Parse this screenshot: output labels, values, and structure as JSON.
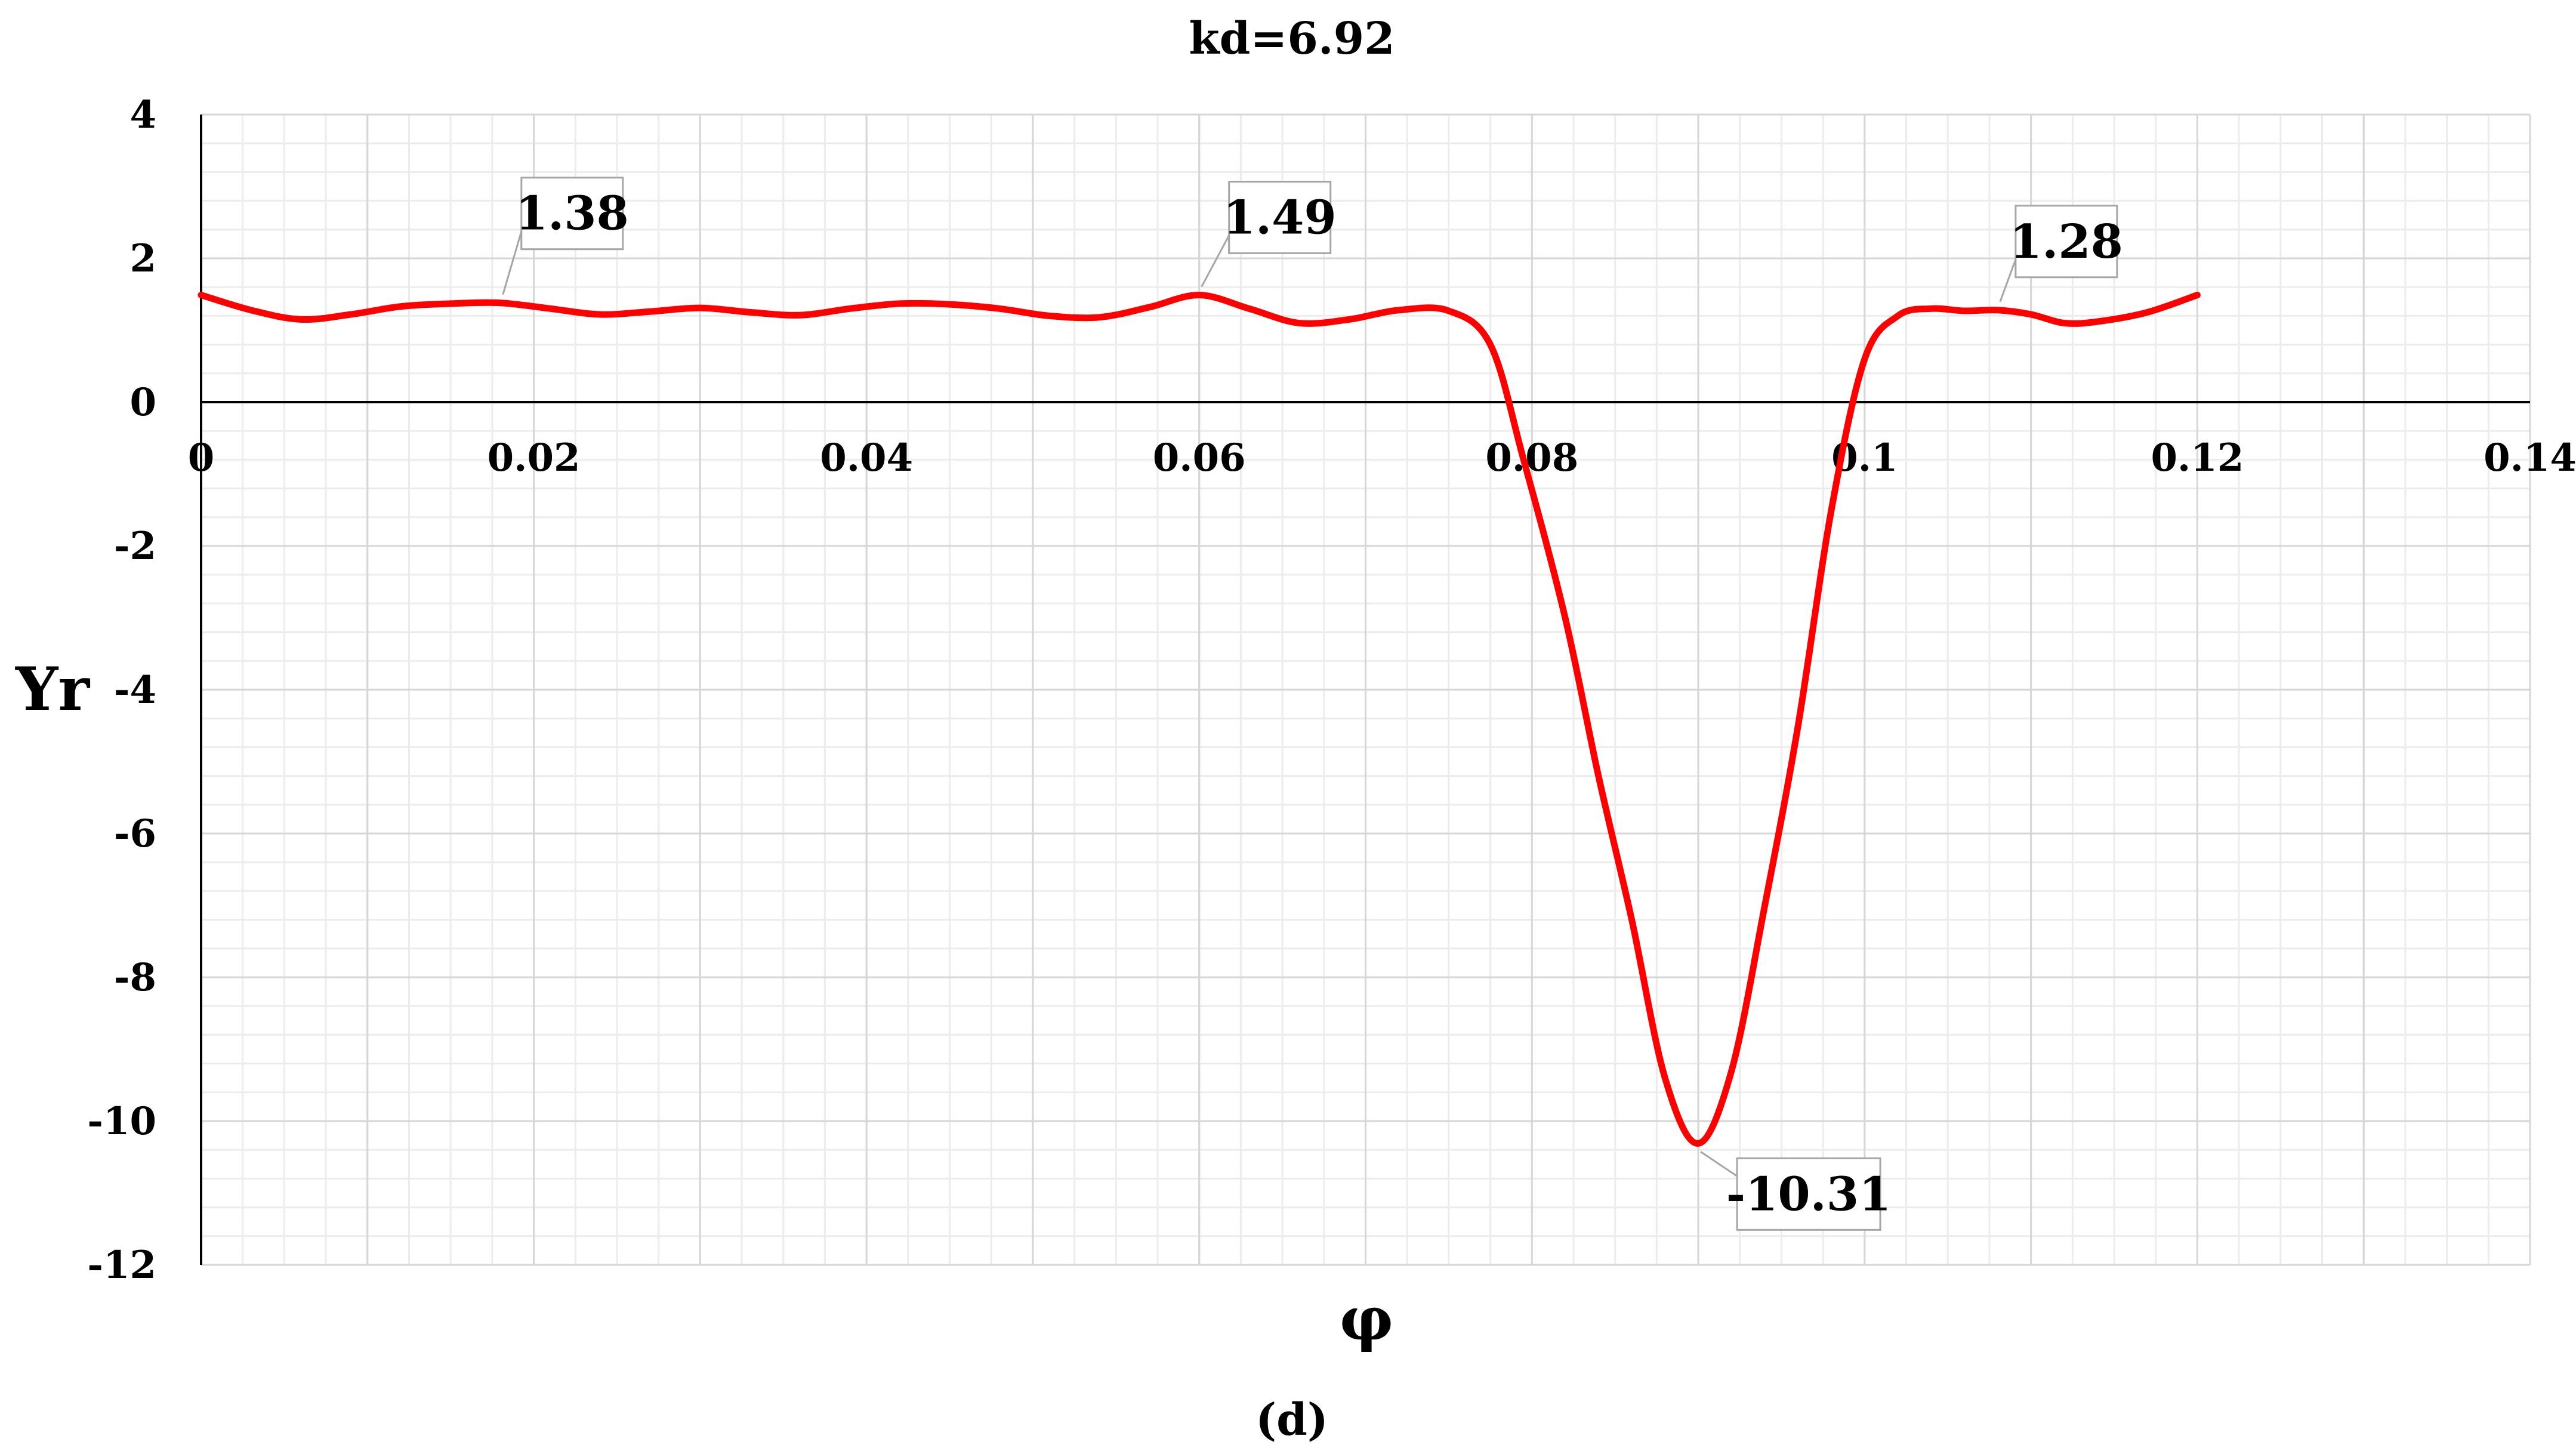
{
  "chart_data": {
    "type": "line",
    "title": "kd=6.92",
    "xlabel": "φ",
    "ylabel": "Yr",
    "caption": "(d)",
    "xlim": [
      0,
      0.14
    ],
    "ylim": [
      -12,
      4
    ],
    "x_ticks": [
      "0",
      "0.02",
      "0.04",
      "0.06",
      "0.08",
      "0.1",
      "0.12",
      "0.14"
    ],
    "y_ticks": [
      "4",
      "2",
      "0",
      "-2",
      "-4",
      "-6",
      "-8",
      "-10",
      "-12"
    ],
    "grid": true,
    "legend": "none",
    "color": "#ff0000",
    "series": [
      {
        "x": [
          0,
          0.003,
          0.006,
          0.009,
          0.012,
          0.015,
          0.018,
          0.021,
          0.024,
          0.027,
          0.03,
          0.033,
          0.036,
          0.039,
          0.042,
          0.045,
          0.048,
          0.051,
          0.054,
          0.057,
          0.06,
          0.063,
          0.066,
          0.069,
          0.072,
          0.075,
          0.0775,
          0.0795,
          0.082,
          0.084,
          0.086,
          0.088,
          0.09,
          0.092,
          0.094,
          0.096,
          0.098,
          0.1,
          0.102,
          0.104,
          0.106,
          0.108,
          0.11,
          0.112,
          0.114,
          0.117,
          0.12
        ],
        "y": [
          1.49,
          1.28,
          1.15,
          1.22,
          1.33,
          1.37,
          1.38,
          1.3,
          1.22,
          1.26,
          1.31,
          1.25,
          1.21,
          1.3,
          1.37,
          1.36,
          1.3,
          1.2,
          1.18,
          1.32,
          1.49,
          1.3,
          1.1,
          1.15,
          1.28,
          1.27,
          0.8,
          -0.8,
          -3.0,
          -5.2,
          -7.2,
          -9.4,
          -10.31,
          -9.3,
          -7.0,
          -4.5,
          -1.5,
          0.6,
          1.2,
          1.3,
          1.27,
          1.28,
          1.22,
          1.1,
          1.12,
          1.25,
          1.49
        ]
      }
    ],
    "annotations": [
      {
        "text": "1.38",
        "x": 0.018,
        "y": 1.38
      },
      {
        "text": "1.49",
        "x": 0.06,
        "y": 1.49
      },
      {
        "text": "1.28",
        "x": 0.108,
        "y": 1.28
      },
      {
        "text": "-10.31",
        "x": 0.09,
        "y": -10.31
      }
    ]
  }
}
